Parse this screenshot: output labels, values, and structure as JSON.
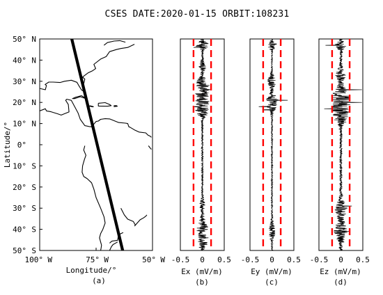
{
  "title": "CSES DATE:2020-01-15 ORBIT:108231",
  "chart_data": [
    {
      "type": "line",
      "panel": "a",
      "subtitle": "(a)",
      "xlabel": "Longitude/°",
      "ylabel": "Latitude/°",
      "xlim": [
        -100,
        -50
      ],
      "ylim": [
        -50,
        50
      ],
      "x_ticks": [
        {
          "value": -100,
          "label": "100° W"
        },
        {
          "value": -75,
          "label": "75° W"
        },
        {
          "value": -50,
          "label": "50° W"
        }
      ],
      "y_ticks": [
        {
          "value": 50,
          "label": "50° N"
        },
        {
          "value": 40,
          "label": "40° N"
        },
        {
          "value": 30,
          "label": "30° N"
        },
        {
          "value": 20,
          "label": "20° N"
        },
        {
          "value": 10,
          "label": "10° N"
        },
        {
          "value": 0,
          "label": "0°"
        },
        {
          "value": -10,
          "label": "10° S"
        },
        {
          "value": -20,
          "label": "20° S"
        },
        {
          "value": -30,
          "label": "30° S"
        },
        {
          "value": -40,
          "label": "40° S"
        },
        {
          "value": -50,
          "label": "50° S"
        }
      ],
      "orbit_track": {
        "lon": [
          -86.0,
          -63.0
        ],
        "lat": [
          51.0,
          -51.0
        ],
        "color": "#000000"
      },
      "coastlines": [
        {
          "lon": [
            -100,
            -97.5,
            -97,
            -95,
            -92,
            -90.5,
            -90,
            -87,
            -87.3,
            -88.5,
            -88,
            -86,
            -83.5,
            -83,
            -82,
            -80,
            -78,
            -77,
            -75,
            -74,
            -73,
            -71,
            -69,
            -65,
            -62,
            -61,
            -60.5,
            -60,
            -58,
            -56,
            -53,
            -52,
            -51,
            -50.5
          ],
          "lat": [
            16,
            17,
            16,
            15.6,
            14.6,
            14,
            14.2,
            15.5,
            19,
            21,
            21.5,
            21,
            16,
            15,
            12,
            9,
            8.6,
            8.5,
            11,
            11.2,
            12,
            12.3,
            12.2,
            10.5,
            10.2,
            10,
            8.5,
            8.3,
            7,
            6,
            5.6,
            4.5,
            4,
            3.5
          ]
        },
        {
          "lon": [
            -80,
            -80.5,
            -79.5,
            -80.2,
            -81,
            -81.2,
            -80.5,
            -79,
            -77,
            -76,
            -75,
            -73,
            -71.5,
            -71,
            -72,
            -73,
            -73.5,
            -73,
            -72.6,
            -72.8,
            -73
          ],
          "lat": [
            -0.5,
            -2.5,
            -5,
            -7,
            -10,
            -13,
            -15,
            -16,
            -18,
            -21,
            -25,
            -30,
            -34,
            -37,
            -40,
            -42,
            -44,
            -46,
            -47.5,
            -49,
            -50
          ]
        },
        {
          "lon": [
            -100,
            -97.5,
            -97,
            -97.6,
            -96,
            -94,
            -91,
            -89,
            -86,
            -83.5,
            -82.7,
            -81.5,
            -80.5,
            -80.2,
            -81,
            -80.3,
            -80,
            -81,
            -78.5,
            -76.5,
            -75.2,
            -76,
            -73,
            -70.5,
            -70,
            -69,
            -66,
            -64,
            -61,
            -58
          ],
          "lat": [
            26.6,
            26,
            28,
            28.5,
            29.6,
            29.6,
            29.4,
            30,
            30.5,
            29.5,
            28,
            26,
            25.2,
            26,
            27.5,
            29.5,
            31,
            32,
            34,
            35,
            36,
            38,
            40.5,
            41.7,
            42.5,
            44,
            45,
            45.5,
            46,
            47.5
          ]
        },
        {
          "lon": [
            -79,
            -81.5,
            -84,
            -85.5,
            -84.5,
            -82,
            -79
          ],
          "lat": [
            21.6,
            23.2,
            22.5,
            21.8,
            21.8,
            22.7,
            21.6
          ]
        },
        {
          "lon": [
            -74,
            -71,
            -69,
            -68.3,
            -70,
            -74,
            -74
          ],
          "lat": [
            19.6,
            19.9,
            19,
            18.5,
            18.2,
            18.3,
            19.6
          ]
        },
        {
          "lon": [
            -67.2,
            -66,
            -65.6,
            -67.2
          ],
          "lat": [
            18.5,
            18.5,
            18.2,
            18.0
          ]
        },
        {
          "lon": [
            -77.5,
            -76.2,
            -76.5,
            -78.2,
            -77.5
          ],
          "lat": [
            18.4,
            18.0,
            17.9,
            18.3,
            18.4
          ]
        },
        {
          "lon": [
            -71.5,
            -70,
            -67,
            -64.5,
            -62
          ],
          "lat": [
            47,
            48.3,
            49,
            49.2,
            48.5
          ]
        },
        {
          "lon": [
            -58,
            -55.5,
            -54,
            -53,
            -52.5
          ],
          "lat": [
            -38.5,
            -35.5,
            -34.6,
            -33.8,
            -33.2
          ]
        },
        {
          "lon": [
            -69,
            -68,
            -65.5,
            -65,
            -63
          ],
          "lat": [
            -46.5,
            -45.6,
            -45.2,
            -42.5,
            -41.5
          ]
        },
        {
          "lon": [
            -69,
            -68.2,
            -67.5,
            -65.5
          ],
          "lat": [
            -50,
            -48.2,
            -47.2,
            -46
          ]
        },
        {
          "lon": [
            -64,
            -62.5,
            -61,
            -58.5,
            -57.5
          ],
          "lat": [
            -30,
            -33.2,
            -35.2,
            -36.3,
            -38.2
          ]
        },
        {
          "lon": [
            -50.5,
            -51.2,
            -51.8
          ],
          "lat": [
            -2.2,
            -1.3,
            -0.5
          ]
        }
      ]
    },
    {
      "type": "line",
      "panel": "b",
      "subtitle": "(b)",
      "xlabel": "Ex (mV/m)",
      "xlim": [
        -0.5,
        0.5
      ],
      "ylim": [
        -50,
        50
      ],
      "x_ticks": [
        "-0.5",
        "0",
        "0.5"
      ],
      "thresholds": [
        -0.2,
        0.2
      ],
      "threshold_color": "#ff0000",
      "series_color": "#000000",
      "signal": {
        "base_amplitude": 0.02,
        "bursts": [
          {
            "lat": 47.0,
            "width": 2,
            "amplitude": 0.14
          },
          {
            "lat": 37.0,
            "width": 3,
            "amplitude": 0.06
          },
          {
            "lat": 29.0,
            "width": 3,
            "amplitude": 0.12
          },
          {
            "lat": 22.0,
            "width": 5,
            "amplitude": 0.16
          },
          {
            "lat": 16.0,
            "width": 3,
            "amplitude": 0.12
          },
          {
            "lat": -28.0,
            "width": 3,
            "amplitude": 0.05
          },
          {
            "lat": -40.0,
            "width": 5,
            "amplitude": 0.11
          },
          {
            "lat": -47.0,
            "width": 2,
            "amplitude": 0.08
          }
        ],
        "spikes": [
          {
            "lat": 46.0,
            "value": -0.2
          },
          {
            "lat": 26.0,
            "value": 0.2
          },
          {
            "lat": 18.0,
            "value": -0.19
          },
          {
            "lat": -44.0,
            "value": 0.14
          }
        ]
      }
    },
    {
      "type": "line",
      "panel": "c",
      "subtitle": "(c)",
      "xlabel": "Ey (mV/m)",
      "xlim": [
        -0.5,
        0.5
      ],
      "ylim": [
        -50,
        50
      ],
      "x_ticks": [
        "-0.5",
        "0",
        "0.5"
      ],
      "thresholds": [
        -0.2,
        0.2
      ],
      "threshold_color": "#ff0000",
      "series_color": "#000000",
      "signal": {
        "base_amplitude": 0.015,
        "bursts": [
          {
            "lat": 47.0,
            "width": 2,
            "amplitude": 0.1
          },
          {
            "lat": 30.0,
            "width": 3,
            "amplitude": 0.09
          },
          {
            "lat": 20.0,
            "width": 4,
            "amplitude": 0.14
          },
          {
            "lat": -41.0,
            "width": 4,
            "amplitude": 0.07
          }
        ],
        "spikes": [
          {
            "lat": 21.0,
            "value": 0.36
          },
          {
            "lat": 18.0,
            "value": -0.3
          },
          {
            "lat": 16.5,
            "value": -0.2
          },
          {
            "lat": 47.5,
            "value": 0.1
          }
        ]
      }
    },
    {
      "type": "line",
      "panel": "d",
      "subtitle": "(d)",
      "xlabel": "Ez (mV/m)",
      "xlim": [
        -0.5,
        0.5
      ],
      "ylim": [
        -50,
        50
      ],
      "x_ticks": [
        "-0.5",
        "0",
        "0.5"
      ],
      "thresholds": [
        -0.2,
        0.2
      ],
      "threshold_color": "#ff0000",
      "series_color": "#000000",
      "signal": {
        "base_amplitude": 0.03,
        "bursts": [
          {
            "lat": 47.0,
            "width": 2,
            "amplitude": 0.12
          },
          {
            "lat": 33.0,
            "width": 3,
            "amplitude": 0.1
          },
          {
            "lat": 24.0,
            "width": 4,
            "amplitude": 0.14
          },
          {
            "lat": 17.5,
            "width": 4,
            "amplitude": 0.2
          },
          {
            "lat": 12.0,
            "width": 3,
            "amplitude": 0.1
          },
          {
            "lat": -30.0,
            "width": 4,
            "amplitude": 0.12
          },
          {
            "lat": -41.0,
            "width": 5,
            "amplitude": 0.13
          }
        ],
        "spikes": [
          {
            "lat": 47.0,
            "value": -0.35
          },
          {
            "lat": 26.0,
            "value": 0.48
          },
          {
            "lat": 20.0,
            "value": 0.48
          },
          {
            "lat": 17.0,
            "value": -0.38
          },
          {
            "lat": -29.0,
            "value": 0.25
          },
          {
            "lat": -41.0,
            "value": 0.2
          }
        ]
      }
    }
  ]
}
